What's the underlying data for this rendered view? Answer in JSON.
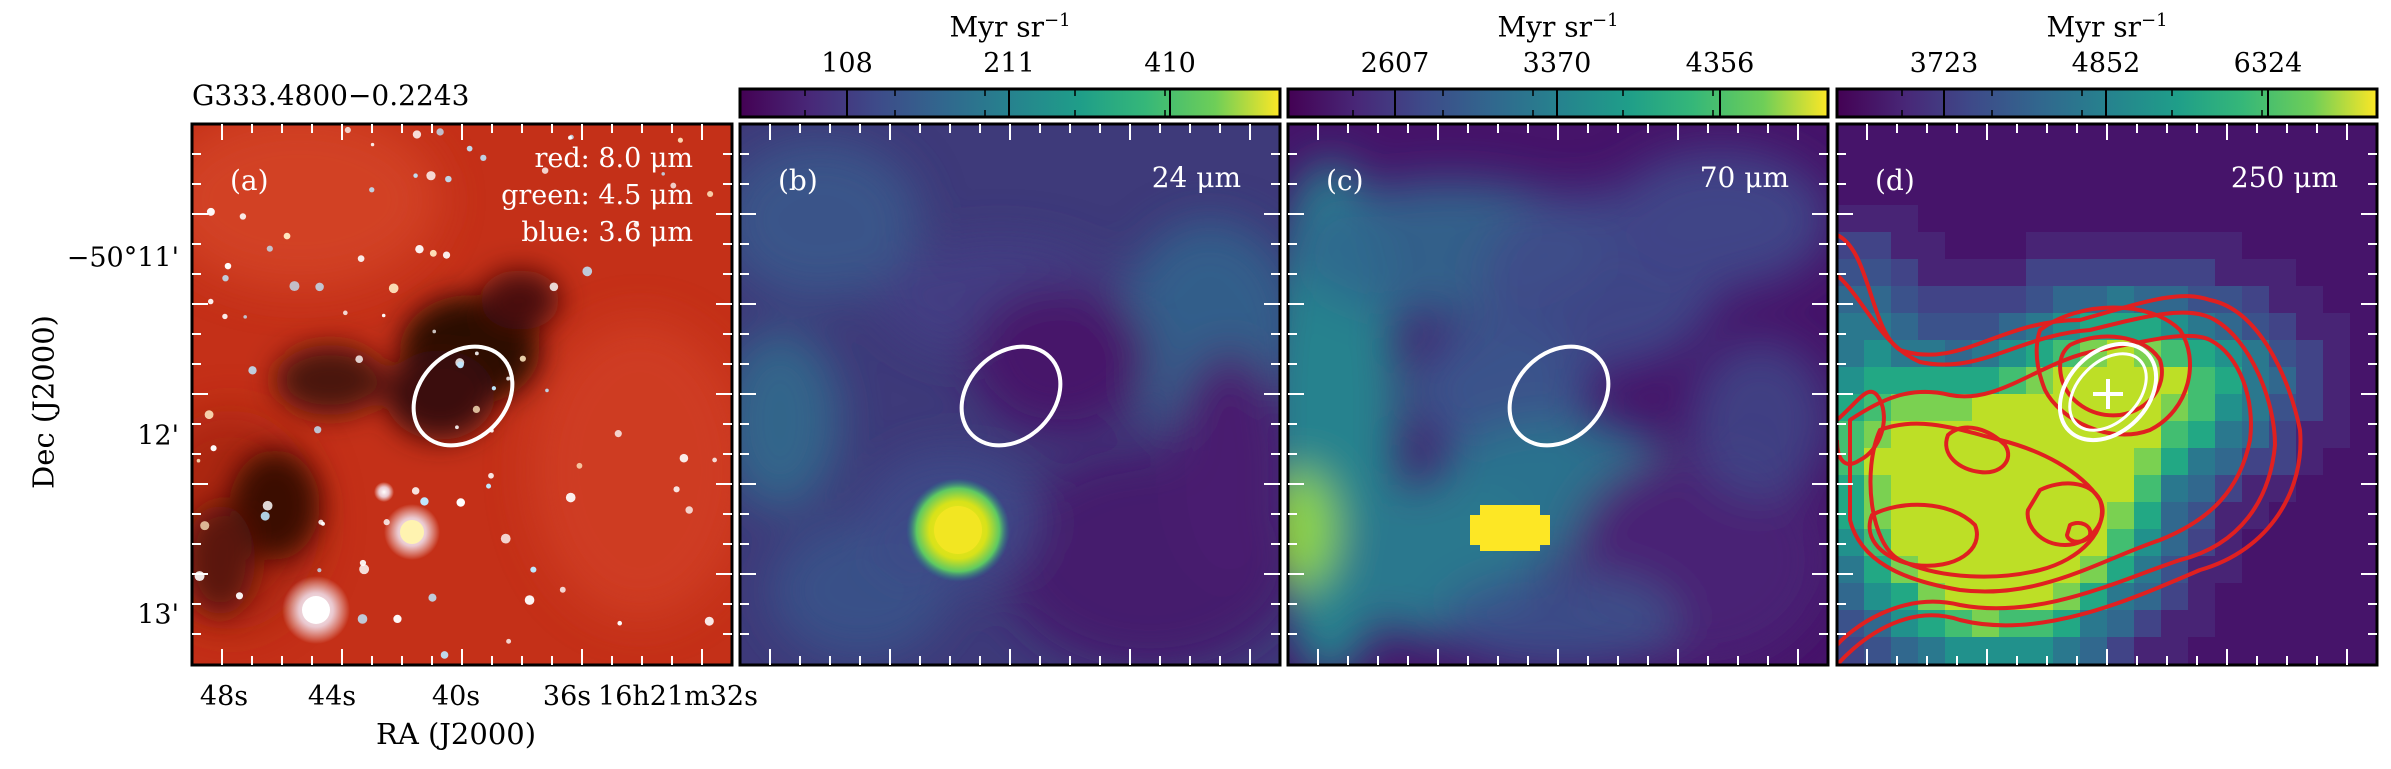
{
  "figure": {
    "source_name": "G333.4800−0.2243",
    "y_axis_label": "Dec (J2000)",
    "x_axis_label": "RA (J2000)",
    "y_ticks": [
      "−50°11'",
      "12'",
      "13'"
    ],
    "x_ticks": [
      "48s",
      "44s",
      "40s",
      "36s",
      "16h21m32s"
    ]
  },
  "panels": [
    {
      "label": "(a)",
      "image": "three-color IRAC composite",
      "band_text": [
        "red: 8.0 μm",
        "green: 4.5 μm",
        "blue: 3.6 μm"
      ]
    },
    {
      "label": "(b)",
      "wavelength": "24 μm",
      "colorbar": {
        "unit": "Myr sr",
        "unit_exp": "−1",
        "ticks": [
          "108",
          "211",
          "410"
        ],
        "colormap": "viridis"
      }
    },
    {
      "label": "(c)",
      "wavelength": "70 μm",
      "colorbar": {
        "unit": "Myr sr",
        "unit_exp": "−1",
        "ticks": [
          "2607",
          "3370",
          "4356"
        ],
        "colormap": "viridis"
      }
    },
    {
      "label": "(d)",
      "wavelength": "250 μm",
      "colorbar": {
        "unit": "Myr sr",
        "unit_exp": "−1",
        "ticks": [
          "3723",
          "4852",
          "6324"
        ],
        "colormap": "viridis"
      },
      "overlay": "red contours, cross marker"
    }
  ],
  "colors": {
    "ellipse": "#ffffff",
    "contour": "#e02020",
    "viridis_low": "#440154",
    "viridis_mid": "#21918c",
    "viridis_high": "#fde725"
  }
}
